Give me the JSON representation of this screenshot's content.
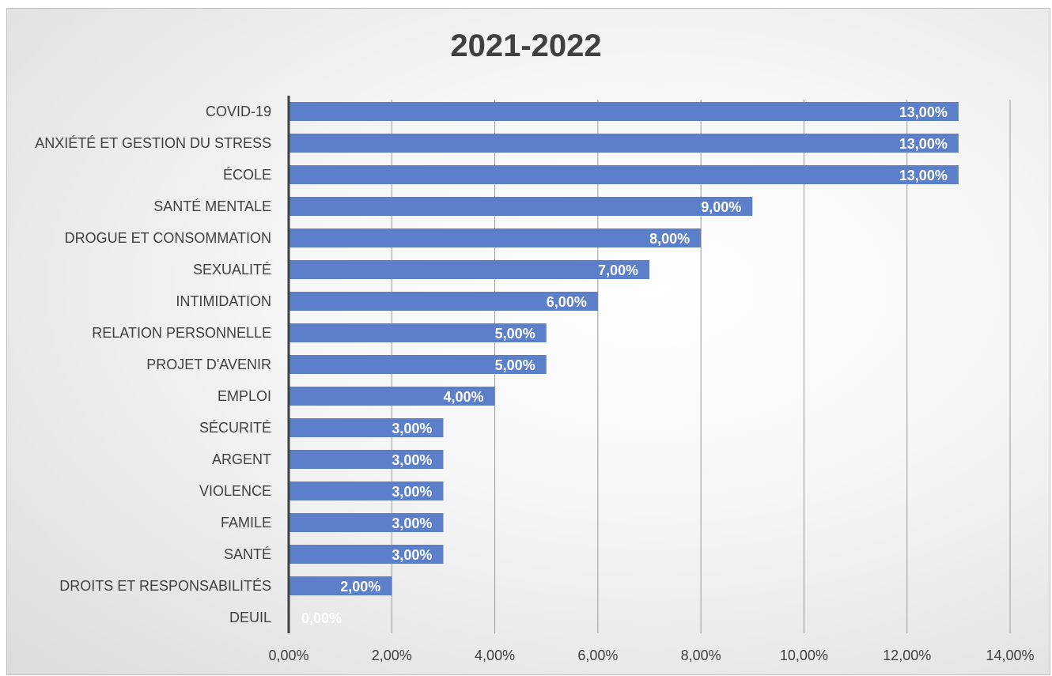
{
  "chart_data": {
    "type": "bar",
    "orientation": "horizontal",
    "title": "2021-2022",
    "xlabel": "",
    "ylabel": "",
    "xlim": [
      0,
      14
    ],
    "tick_values": [
      0,
      2,
      4,
      6,
      8,
      10,
      12,
      14
    ],
    "tick_labels": [
      "0,00%",
      "2,00%",
      "4,00%",
      "6,00%",
      "8,00%",
      "10,00%",
      "12,00%",
      "14,00%"
    ],
    "grid": "vertical",
    "legend": "none",
    "bar_color": "#5b7fc8",
    "categories": [
      "COVID-19",
      "ANXIÉTÉ ET GESTION DU STRESS",
      "ÉCOLE",
      "SANTÉ MENTALE",
      "DROGUE ET CONSOMMATION",
      "SEXUALITÉ",
      "INTIMIDATION",
      "RELATION PERSONNELLE",
      "PROJET D'AVENIR",
      "EMPLOI",
      "SÉCURITÉ",
      "ARGENT",
      "VIOLENCE",
      "FAMILE",
      "SANTÉ",
      "DROITS ET RESPONSABILITÉS",
      "DEUIL"
    ],
    "values": [
      13,
      13,
      13,
      9,
      8,
      7,
      6,
      5,
      5,
      4,
      3,
      3,
      3,
      3,
      3,
      2,
      0
    ],
    "value_labels": [
      "13,00%",
      "13,00%",
      "13,00%",
      "9,00%",
      "8,00%",
      "7,00%",
      "6,00%",
      "5,00%",
      "5,00%",
      "4,00%",
      "3,00%",
      "3,00%",
      "3,00%",
      "3,00%",
      "3,00%",
      "2,00%",
      "0,00%"
    ]
  }
}
